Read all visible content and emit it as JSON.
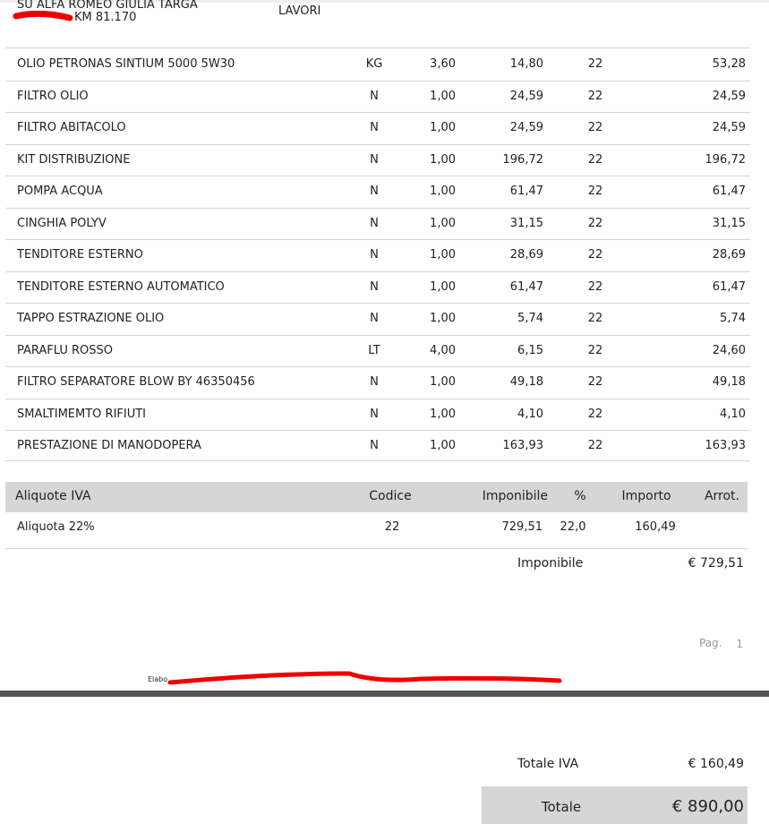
{
  "header": {
    "vehicle": "SU ALFA ROMEO GIULIA TARGA",
    "km": "KM 81.170",
    "section": "LAVORI"
  },
  "table": {
    "rows": [
      [
        "OLIO PETRONAS SINTIUM 5000 5W30",
        "KG",
        "3,60",
        "14,80",
        "22",
        "53,28"
      ],
      [
        "FILTRO OLIO",
        "N",
        "1,00",
        "24,59",
        "22",
        "24,59"
      ],
      [
        "FILTRO ABITACOLO",
        "N",
        "1,00",
        "24,59",
        "22",
        "24,59"
      ],
      [
        "KIT DISTRIBUZIONE",
        "N",
        "1,00",
        "196,72",
        "22",
        "196,72"
      ],
      [
        "POMPA ACQUA",
        "N",
        "1,00",
        "61,47",
        "22",
        "61,47"
      ],
      [
        "CINGHIA POLYV",
        "N",
        "1,00",
        "31,15",
        "22",
        "31,15"
      ],
      [
        "TENDITORE ESTERNO",
        "N",
        "1,00",
        "28,69",
        "22",
        "28,69"
      ],
      [
        "TENDITORE ESTERNO AUTOMATICO",
        "N",
        "1,00",
        "61,47",
        "22",
        "61,47"
      ],
      [
        "TAPPO ESTRAZIONE OLIO",
        "N",
        "1,00",
        "5,74",
        "22",
        "5,74"
      ],
      [
        "PARAFLU ROSSO",
        "LT",
        "4,00",
        "6,15",
        "22",
        "24,60"
      ],
      [
        "FILTRO SEPARATORE BLOW BY 46350456",
        "N",
        "1,00",
        "49,18",
        "22",
        "49,18"
      ],
      [
        "SMALTIMEMTO RIFIUTI",
        "N",
        "1,00",
        "4,10",
        "22",
        "4,10"
      ],
      [
        "PRESTAZIONE DI MANODOPERA",
        "N",
        "1,00",
        "163,93",
        "22",
        "163,93"
      ]
    ]
  },
  "vat_table": {
    "headers": [
      "Aliquote IVA",
      "Codice",
      "Imponibile",
      "%",
      "Importo",
      "Arrot."
    ],
    "rows": [
      [
        "Aliquota 22%",
        "22",
        "729,51",
        "22,0",
        "160,49"
      ]
    ]
  },
  "summary": {
    "taxable_label": "Imponibile",
    "taxable_value": "€ 729,51"
  },
  "page": {
    "label": "Pag.",
    "number": "1"
  },
  "footer": {
    "text": "Elabo"
  },
  "totals": {
    "vat_label": "Totale IVA",
    "vat_value": "€ 160,49",
    "total_label": "Totale",
    "total_value": "€ 890,00"
  }
}
